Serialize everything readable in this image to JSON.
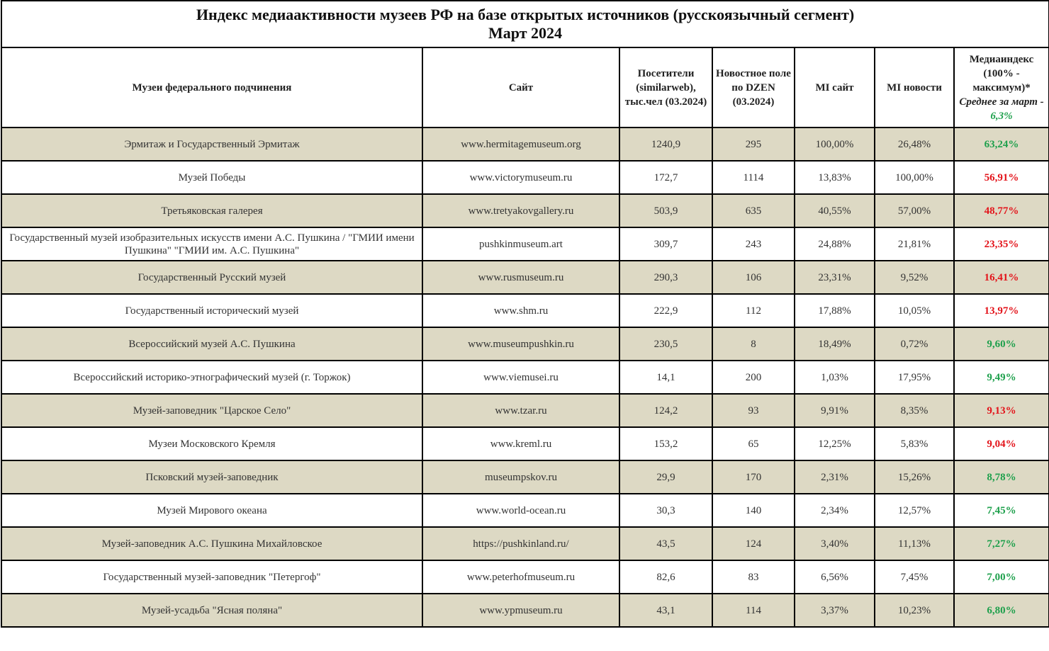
{
  "title": "Индекс медиаактивности музеев РФ на базе открытых источников (русскоязычный сегмент)",
  "subtitle": "Март 2024",
  "headers": {
    "museum": "Музеи федерального подчинения",
    "site": "Сайт",
    "visitors": "Посетители (similarweb), тыс.чел (03.2024)",
    "news": "Новостное поле по DZEN (03.2024)",
    "mi_site": "MI сайт",
    "mi_news": "MI новости",
    "index": "Медиаиндекс (100% - максимум)*",
    "avg_label": "Среднее за март -",
    "avg_value": "6,3%"
  },
  "colors": {
    "shade": "#ddd9c4",
    "green": "#1ea04c",
    "red": "#e3141b"
  },
  "rows": [
    {
      "museum": "Эрмитаж и Государственный Эрмитаж",
      "site": "www.hermitagemuseum.org",
      "visitors": "1240,9",
      "news": "295",
      "mi_site": "100,00%",
      "mi_news": "26,48%",
      "index": "63,24%",
      "color": "green"
    },
    {
      "museum": "Музей Победы",
      "site": "www.victorymuseum.ru",
      "visitors": "172,7",
      "news": "1114",
      "mi_site": "13,83%",
      "mi_news": "100,00%",
      "index": "56,91%",
      "color": "red"
    },
    {
      "museum": "Третьяковская галерея",
      "site": "www.tretyakovgallery.ru",
      "visitors": "503,9",
      "news": "635",
      "mi_site": "40,55%",
      "mi_news": "57,00%",
      "index": "48,77%",
      "color": "red"
    },
    {
      "museum": "Государственный музей изобразительных искусств имени А.С. Пушкина / \"ГМИИ имени Пушкина\" \"ГМИИ им. А.С. Пушкина\"",
      "site": "pushkinmuseum.art",
      "visitors": "309,7",
      "news": "243",
      "mi_site": "24,88%",
      "mi_news": "21,81%",
      "index": "23,35%",
      "color": "red"
    },
    {
      "museum": "Государственный Русский музей",
      "site": "www.rusmuseum.ru",
      "visitors": "290,3",
      "news": "106",
      "mi_site": "23,31%",
      "mi_news": "9,52%",
      "index": "16,41%",
      "color": "red"
    },
    {
      "museum": "Государственный исторический музей",
      "site": "www.shm.ru",
      "visitors": "222,9",
      "news": "112",
      "mi_site": "17,88%",
      "mi_news": "10,05%",
      "index": "13,97%",
      "color": "red"
    },
    {
      "museum": "Всероссийский музей А.С. Пушкина",
      "site": "www.museumpushkin.ru",
      "visitors": "230,5",
      "news": "8",
      "mi_site": "18,49%",
      "mi_news": "0,72%",
      "index": "9,60%",
      "color": "green"
    },
    {
      "museum": "Всероссийский историко-этнографический музей (г. Торжок)",
      "site": "www.viemusei.ru",
      "visitors": "14,1",
      "news": "200",
      "mi_site": "1,03%",
      "mi_news": "17,95%",
      "index": "9,49%",
      "color": "green"
    },
    {
      "museum": "Музей-заповедник \"Царское Село\"",
      "site": "www.tzar.ru",
      "visitors": "124,2",
      "news": "93",
      "mi_site": "9,91%",
      "mi_news": "8,35%",
      "index": "9,13%",
      "color": "red"
    },
    {
      "museum": "Музеи Московского Кремля",
      "site": "www.kreml.ru",
      "visitors": "153,2",
      "news": "65",
      "mi_site": "12,25%",
      "mi_news": "5,83%",
      "index": "9,04%",
      "color": "red"
    },
    {
      "museum": "Псковский музей-заповедник",
      "site": "museumpskov.ru",
      "visitors": "29,9",
      "news": "170",
      "mi_site": "2,31%",
      "mi_news": "15,26%",
      "index": "8,78%",
      "color": "green"
    },
    {
      "museum": "Музей Мирового океана",
      "site": "www.world-ocean.ru",
      "visitors": "30,3",
      "news": "140",
      "mi_site": "2,34%",
      "mi_news": "12,57%",
      "index": "7,45%",
      "color": "green"
    },
    {
      "museum": "Музей-заповедник А.С. Пушкина Михайловское",
      "site": "https://pushkinland.ru/",
      "visitors": "43,5",
      "news": "124",
      "mi_site": "3,40%",
      "mi_news": "11,13%",
      "index": "7,27%",
      "color": "green"
    },
    {
      "museum": "Государственный музей-заповедник \"Петергоф\"",
      "site": "www.peterhofmuseum.ru",
      "visitors": "82,6",
      "news": "83",
      "mi_site": "6,56%",
      "mi_news": "7,45%",
      "index": "7,00%",
      "color": "green"
    },
    {
      "museum": "Музей-усадьба \"Ясная поляна\"",
      "site": "www.ypmuseum.ru",
      "visitors": "43,1",
      "news": "114",
      "mi_site": "3,37%",
      "mi_news": "10,23%",
      "index": "6,80%",
      "color": "green"
    }
  ]
}
